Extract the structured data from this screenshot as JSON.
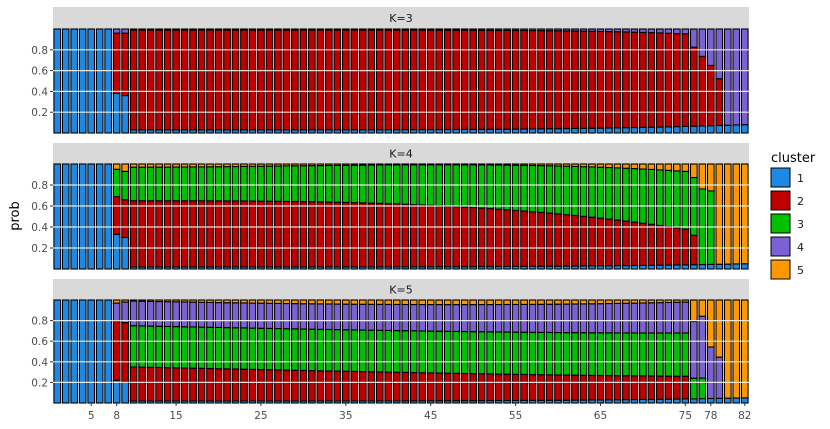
{
  "chart_data": {
    "type": "bar",
    "subtype": "stacked-probability-faceted",
    "n_individuals": 82,
    "ylabel": "prob",
    "y_ticks": [
      "0.2",
      "0.4",
      "0.6",
      "0.8"
    ],
    "x_ticks": [
      "5",
      "8",
      "15",
      "25",
      "35",
      "45",
      "55",
      "65",
      "75",
      "78",
      "82"
    ],
    "ylim": [
      0,
      1
    ],
    "legend": {
      "title": "cluster",
      "placement": "right",
      "items": [
        {
          "label": "1",
          "color": "#1E88E5"
        },
        {
          "label": "2",
          "color": "#C00000"
        },
        {
          "label": "3",
          "color": "#00C000"
        },
        {
          "label": "4",
          "color": "#7B61D6"
        },
        {
          "label": "5",
          "color": "#FF9800"
        }
      ]
    },
    "panels": [
      {
        "label": "K=3",
        "segments": [
          {
            "cluster": "1",
            "x_from": 1,
            "x_to": 7,
            "start": 1.0,
            "end": 1.0,
            "curve": 1
          },
          {
            "cluster": "1",
            "x_from": 8,
            "x_to": 8,
            "start": 0.38,
            "end": 0.38,
            "curve": 1
          },
          {
            "cluster": "1",
            "x_from": 9,
            "x_to": 9,
            "start": 0.36,
            "end": 0.36,
            "curve": 1
          },
          {
            "cluster": "1",
            "x_from": 10,
            "x_to": 82,
            "start": 0.03,
            "end": 0.08,
            "curve": 4
          },
          {
            "cluster": "2",
            "x_from": 1,
            "x_to": 7,
            "start": 0.0,
            "end": 0.0,
            "curve": 1
          },
          {
            "cluster": "2",
            "x_from": 8,
            "x_to": 8,
            "start": 0.58,
            "end": 0.58,
            "curve": 1
          },
          {
            "cluster": "2",
            "x_from": 9,
            "x_to": 9,
            "start": 0.6,
            "end": 0.6,
            "curve": 1
          },
          {
            "cluster": "2",
            "x_from": 10,
            "x_to": 75,
            "start": 0.96,
            "end": 0.89,
            "curve": 5
          },
          {
            "cluster": "2",
            "x_from": 76,
            "x_to": 78,
            "start": 0.76,
            "end": 0.58,
            "curve": 1
          },
          {
            "cluster": "2",
            "x_from": 79,
            "x_to": 79,
            "start": 0.45,
            "end": 0.45,
            "curve": 1
          },
          {
            "cluster": "2",
            "x_from": 80,
            "x_to": 82,
            "start": 0.0,
            "end": 0.0,
            "curve": 1
          },
          {
            "cluster": "3",
            "x_from": 1,
            "x_to": 82,
            "start": 0.0,
            "end": 0.0,
            "curve": 1
          }
        ]
      },
      {
        "label": "K=4",
        "segments": [
          {
            "cluster": "1",
            "x_from": 1,
            "x_to": 7,
            "start": 1.0,
            "end": 1.0,
            "curve": 1
          },
          {
            "cluster": "1",
            "x_from": 8,
            "x_to": 8,
            "start": 0.33,
            "end": 0.33,
            "curve": 1
          },
          {
            "cluster": "1",
            "x_from": 9,
            "x_to": 9,
            "start": 0.3,
            "end": 0.3,
            "curve": 1
          },
          {
            "cluster": "1",
            "x_from": 10,
            "x_to": 82,
            "start": 0.02,
            "end": 0.05,
            "curve": 4
          },
          {
            "cluster": "2",
            "x_from": 1,
            "x_to": 7,
            "start": 0.0,
            "end": 0.0,
            "curve": 1
          },
          {
            "cluster": "2",
            "x_from": 8,
            "x_to": 8,
            "start": 0.36,
            "end": 0.36,
            "curve": 1
          },
          {
            "cluster": "2",
            "x_from": 9,
            "x_to": 9,
            "start": 0.36,
            "end": 0.36,
            "curve": 1
          },
          {
            "cluster": "2",
            "x_from": 10,
            "x_to": 75,
            "start": 0.63,
            "end": 0.34,
            "curve": 3
          },
          {
            "cluster": "2",
            "x_from": 76,
            "x_to": 76,
            "start": 0.28,
            "end": 0.28,
            "curve": 1
          },
          {
            "cluster": "2",
            "x_from": 77,
            "x_to": 82,
            "start": 0.0,
            "end": 0.0,
            "curve": 1
          },
          {
            "cluster": "3",
            "x_from": 1,
            "x_to": 7,
            "start": 0.0,
            "end": 0.0,
            "curve": 1
          },
          {
            "cluster": "3",
            "x_from": 8,
            "x_to": 8,
            "start": 0.26,
            "end": 0.26,
            "curve": 1
          },
          {
            "cluster": "3",
            "x_from": 9,
            "x_to": 9,
            "start": 0.27,
            "end": 0.27,
            "curve": 1
          },
          {
            "cluster": "3",
            "x_from": 10,
            "x_to": 75,
            "start": 0.32,
            "end": 0.55,
            "curve": 2
          },
          {
            "cluster": "3",
            "x_from": 76,
            "x_to": 76,
            "start": 0.55,
            "end": 0.55,
            "curve": 1
          },
          {
            "cluster": "3",
            "x_from": 77,
            "x_to": 77,
            "start": 0.72,
            "end": 0.72,
            "curve": 1
          },
          {
            "cluster": "3",
            "x_from": 78,
            "x_to": 78,
            "start": 0.7,
            "end": 0.7,
            "curve": 1
          },
          {
            "cluster": "3",
            "x_from": 79,
            "x_to": 82,
            "start": 0.0,
            "end": 0.0,
            "curve": 1
          },
          {
            "cluster": "4",
            "x_from": 1,
            "x_to": 82,
            "start": 0.0,
            "end": 0.0,
            "curve": 1
          }
        ]
      },
      {
        "label": "K=5",
        "segments": [
          {
            "cluster": "1",
            "x_from": 1,
            "x_to": 7,
            "start": 1.0,
            "end": 1.0,
            "curve": 1
          },
          {
            "cluster": "1",
            "x_from": 8,
            "x_to": 8,
            "start": 0.22,
            "end": 0.22,
            "curve": 1
          },
          {
            "cluster": "1",
            "x_from": 9,
            "x_to": 9,
            "start": 0.2,
            "end": 0.2,
            "curve": 1
          },
          {
            "cluster": "1",
            "x_from": 10,
            "x_to": 82,
            "start": 0.02,
            "end": 0.05,
            "curve": 4
          },
          {
            "cluster": "2",
            "x_from": 1,
            "x_to": 7,
            "start": 0.0,
            "end": 0.0,
            "curve": 1
          },
          {
            "cluster": "2",
            "x_from": 8,
            "x_to": 8,
            "start": 0.58,
            "end": 0.58,
            "curve": 1
          },
          {
            "cluster": "2",
            "x_from": 9,
            "x_to": 9,
            "start": 0.58,
            "end": 0.58,
            "curve": 1
          },
          {
            "cluster": "2",
            "x_from": 10,
            "x_to": 75,
            "start": 0.33,
            "end": 0.22,
            "curve": 1
          },
          {
            "cluster": "2",
            "x_from": 76,
            "x_to": 78,
            "start": 0.0,
            "end": 0.0,
            "curve": 1
          },
          {
            "cluster": "2",
            "x_from": 79,
            "x_to": 82,
            "start": 0.0,
            "end": 0.0,
            "curve": 1
          },
          {
            "cluster": "3",
            "x_from": 1,
            "x_to": 9,
            "start": 0.0,
            "end": 0.0,
            "curve": 1
          },
          {
            "cluster": "3",
            "x_from": 10,
            "x_to": 75,
            "start": 0.4,
            "end": 0.42,
            "curve": 2
          },
          {
            "cluster": "3",
            "x_from": 76,
            "x_to": 76,
            "start": 0.2,
            "end": 0.2,
            "curve": 1
          },
          {
            "cluster": "3",
            "x_from": 77,
            "x_to": 77,
            "start": 0.2,
            "end": 0.2,
            "curve": 1
          },
          {
            "cluster": "3",
            "x_from": 78,
            "x_to": 82,
            "start": 0.0,
            "end": 0.0,
            "curve": 1
          },
          {
            "cluster": "4",
            "x_from": 1,
            "x_to": 7,
            "start": 0.0,
            "end": 0.0,
            "curve": 1
          },
          {
            "cluster": "4",
            "x_from": 8,
            "x_to": 8,
            "start": 0.17,
            "end": 0.17,
            "curve": 1
          },
          {
            "cluster": "4",
            "x_from": 9,
            "x_to": 9,
            "start": 0.2,
            "end": 0.2,
            "curve": 1
          },
          {
            "cluster": "4",
            "x_from": 10,
            "x_to": 75,
            "start": 0.24,
            "end": 0.3,
            "curve": 2
          },
          {
            "cluster": "4",
            "x_from": 76,
            "x_to": 76,
            "start": 0.55,
            "end": 0.55,
            "curve": 1
          },
          {
            "cluster": "4",
            "x_from": 77,
            "x_to": 77,
            "start": 0.6,
            "end": 0.6,
            "curve": 1
          },
          {
            "cluster": "4",
            "x_from": 78,
            "x_to": 79,
            "start": 0.5,
            "end": 0.4,
            "curve": 1
          },
          {
            "cluster": "4",
            "x_from": 80,
            "x_to": 82,
            "start": 0.0,
            "end": 0.0,
            "curve": 1
          }
        ]
      }
    ]
  }
}
